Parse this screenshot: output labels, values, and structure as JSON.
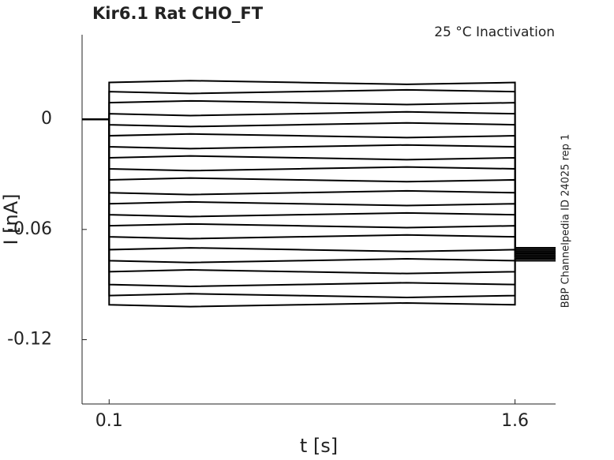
{
  "chart_data": {
    "type": "line",
    "title": "Kir6.1  Rat  CHO_FT",
    "annotation": "25 °C  Inactivation",
    "side_note": "BBP Channelpedia ID 24025 rep 1",
    "x_label": "t [s]",
    "y_label": "I [nA]",
    "xlim": [
      0,
      1.75
    ],
    "ylim": [
      -0.155,
      0.046
    ],
    "xticks": [
      0.1,
      1.6
    ],
    "yticks": [
      0,
      -0.06,
      -0.12
    ],
    "color": "#000000",
    "x": [
      0,
      0.1,
      0.1,
      0.4,
      0.8,
      1.2,
      1.6,
      1.6,
      1.75
    ],
    "series": [
      {
        "values": [
          0,
          0,
          0.02,
          0.021,
          0.02,
          0.019,
          0.02,
          -0.07,
          -0.07
        ]
      },
      {
        "values": [
          0,
          0,
          0.015,
          0.014,
          0.015,
          0.016,
          0.015,
          -0.07,
          -0.07
        ]
      },
      {
        "values": [
          0,
          0,
          0.009,
          0.01,
          0.009,
          0.008,
          0.009,
          -0.071,
          -0.071
        ]
      },
      {
        "values": [
          0,
          0,
          0.003,
          0.002,
          0.003,
          0.004,
          0.003,
          -0.071,
          -0.071
        ]
      },
      {
        "values": [
          0,
          0,
          -0.003,
          -0.004,
          -0.003,
          -0.002,
          -0.003,
          -0.072,
          -0.072
        ]
      },
      {
        "values": [
          0,
          0,
          -0.009,
          -0.008,
          -0.009,
          -0.01,
          -0.009,
          -0.072,
          -0.072
        ]
      },
      {
        "values": [
          0,
          0,
          -0.015,
          -0.016,
          -0.015,
          -0.014,
          -0.015,
          -0.072,
          -0.072
        ]
      },
      {
        "values": [
          0,
          0,
          -0.021,
          -0.02,
          -0.021,
          -0.022,
          -0.021,
          -0.073,
          -0.073
        ]
      },
      {
        "values": [
          0,
          0,
          -0.027,
          -0.028,
          -0.027,
          -0.026,
          -0.027,
          -0.073,
          -0.073
        ]
      },
      {
        "values": [
          0,
          0,
          -0.033,
          -0.032,
          -0.033,
          -0.034,
          -0.033,
          -0.073,
          -0.073
        ]
      },
      {
        "values": [
          0,
          0,
          -0.04,
          -0.041,
          -0.04,
          -0.039,
          -0.04,
          -0.074,
          -0.074
        ]
      },
      {
        "values": [
          0,
          0,
          -0.046,
          -0.045,
          -0.046,
          -0.047,
          -0.046,
          -0.074,
          -0.074
        ]
      },
      {
        "values": [
          0,
          0,
          -0.052,
          -0.053,
          -0.052,
          -0.051,
          -0.052,
          -0.074,
          -0.074
        ]
      },
      {
        "values": [
          0,
          0,
          -0.058,
          -0.057,
          -0.058,
          -0.059,
          -0.058,
          -0.075,
          -0.075
        ]
      },
      {
        "values": [
          0,
          0,
          -0.064,
          -0.065,
          -0.064,
          -0.063,
          -0.064,
          -0.075,
          -0.075
        ]
      },
      {
        "values": [
          0,
          0,
          -0.071,
          -0.07,
          -0.071,
          -0.072,
          -0.071,
          -0.075,
          -0.075
        ]
      },
      {
        "values": [
          0,
          0,
          -0.077,
          -0.078,
          -0.077,
          -0.076,
          -0.077,
          -0.076,
          -0.076
        ]
      },
      {
        "values": [
          0,
          0,
          -0.083,
          -0.082,
          -0.083,
          -0.084,
          -0.083,
          -0.076,
          -0.076
        ]
      },
      {
        "values": [
          0,
          0,
          -0.09,
          -0.091,
          -0.09,
          -0.089,
          -0.09,
          -0.076,
          -0.076
        ]
      },
      {
        "values": [
          0,
          0,
          -0.096,
          -0.095,
          -0.096,
          -0.097,
          -0.096,
          -0.077,
          -0.077
        ]
      },
      {
        "values": [
          0,
          0,
          -0.101,
          -0.102,
          -0.101,
          -0.1,
          -0.101,
          -0.077,
          -0.077
        ]
      }
    ]
  }
}
